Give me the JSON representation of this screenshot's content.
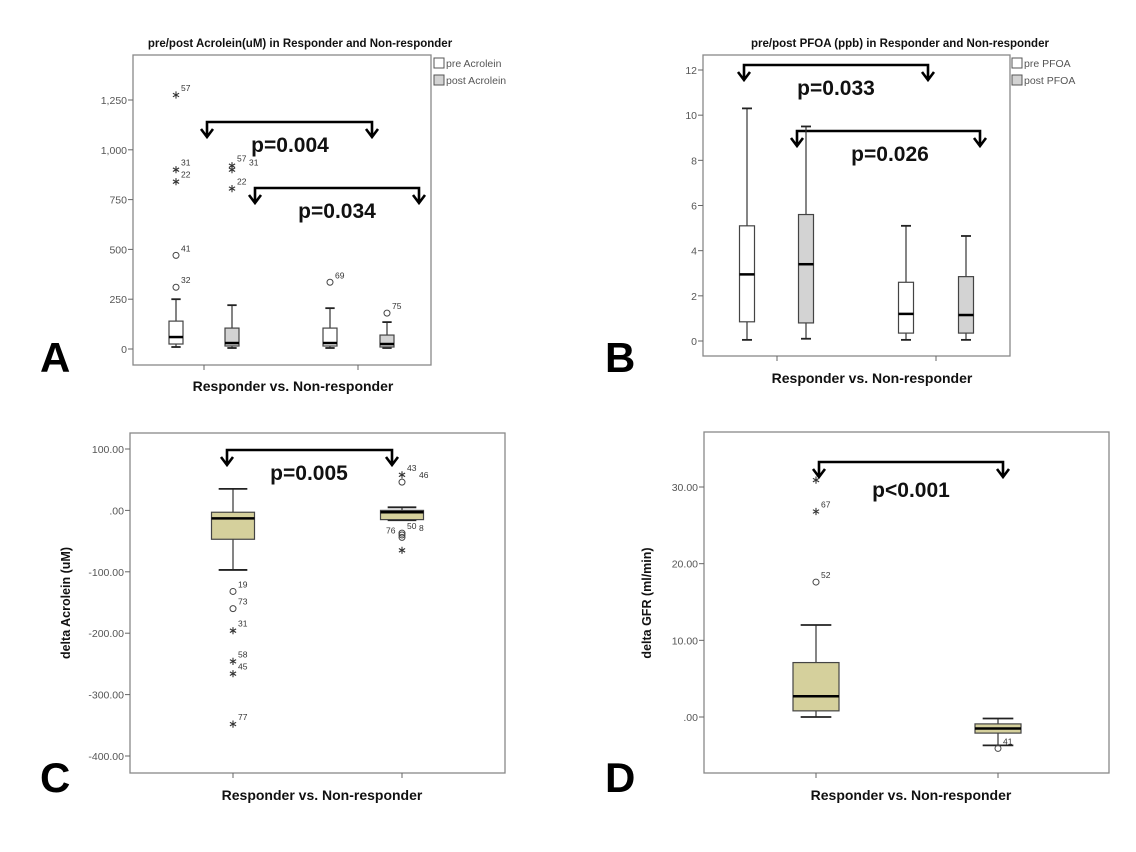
{
  "chart_data": [
    {
      "type": "box",
      "letter": "A",
      "title": "pre/post Acrolein(uM) in Responder and Non-responder",
      "xlabel": "Responder vs. Non-responder",
      "ylabel": "",
      "ylim": [
        -150,
        1400
      ],
      "yticks": [
        0,
        250,
        500,
        750,
        1000,
        1250
      ],
      "ytick_labels": [
        "0",
        "250",
        "500",
        "750",
        "1,000",
        "1,250"
      ],
      "legend": [
        {
          "label": "pre Acrolein",
          "color": "#ffffff"
        },
        {
          "label": "post Acrolein",
          "color": "#d3d3d3"
        }
      ],
      "boxes": [
        {
          "group": 0,
          "series": 0,
          "min": 10,
          "q1": 25,
          "median": 60,
          "q3": 140,
          "max": 250,
          "outliers": [
            {
              "v": 1275,
              "label": "57",
              "marker": "star"
            },
            {
              "v": 900,
              "label": "31",
              "marker": "star"
            },
            {
              "v": 840,
              "label": "22",
              "marker": "star"
            },
            {
              "v": 470,
              "label": "41",
              "marker": "circle"
            },
            {
              "v": 310,
              "label": "32",
              "marker": "circle"
            }
          ]
        },
        {
          "group": 0,
          "series": 1,
          "min": 5,
          "q1": 15,
          "median": 30,
          "q3": 105,
          "max": 220,
          "outliers": [
            {
              "v": 920,
              "label": "57",
              "marker": "star"
            },
            {
              "v": 900,
              "label": "31",
              "marker": "star"
            },
            {
              "v": 805,
              "label": "22",
              "marker": "star"
            }
          ]
        },
        {
          "group": 1,
          "series": 0,
          "min": 5,
          "q1": 15,
          "median": 30,
          "q3": 105,
          "max": 205,
          "outliers": [
            {
              "v": 335,
              "label": "69",
              "marker": "circle"
            }
          ]
        },
        {
          "group": 1,
          "series": 1,
          "min": 5,
          "q1": 10,
          "median": 25,
          "q3": 70,
          "max": 135,
          "outliers": [
            {
              "v": 180,
              "label": "75",
              "marker": "circle"
            }
          ]
        }
      ],
      "annotations": [
        {
          "text": "p=0.004",
          "from": 0,
          "to": 2
        },
        {
          "text": "p=0.034",
          "from": 1,
          "to": 3
        }
      ]
    },
    {
      "type": "box",
      "letter": "B",
      "title": "pre/post PFOA (ppb) in Responder and Non-responder",
      "xlabel": "Responder vs. Non-responder",
      "ylabel": "",
      "ylim": [
        -0.7,
        12.7
      ],
      "yticks": [
        0,
        2,
        4,
        6,
        8,
        10,
        12
      ],
      "ytick_labels": [
        "0",
        "2",
        "4",
        "6",
        "8",
        "10",
        "12"
      ],
      "legend": [
        {
          "label": "pre PFOA",
          "color": "#ffffff"
        },
        {
          "label": "post PFOA",
          "color": "#d3d3d3"
        }
      ],
      "boxes": [
        {
          "group": 0,
          "series": 0,
          "min": 0.05,
          "q1": 0.85,
          "median": 2.95,
          "q3": 5.1,
          "max": 10.3,
          "outliers": []
        },
        {
          "group": 0,
          "series": 1,
          "min": 0.1,
          "q1": 0.8,
          "median": 3.4,
          "q3": 5.6,
          "max": 9.5,
          "outliers": []
        },
        {
          "group": 1,
          "series": 0,
          "min": 0.05,
          "q1": 0.35,
          "median": 1.2,
          "q3": 2.6,
          "max": 5.1,
          "outliers": []
        },
        {
          "group": 1,
          "series": 1,
          "min": 0.05,
          "q1": 0.35,
          "median": 1.15,
          "q3": 2.85,
          "max": 4.65,
          "outliers": []
        }
      ],
      "annotations": [
        {
          "text": "p=0.033",
          "from": 0,
          "to": 2
        },
        {
          "text": "p=0.026",
          "from": 1,
          "to": 3
        }
      ]
    },
    {
      "type": "box",
      "letter": "C",
      "title": "",
      "xlabel": "Responder vs. Non-responder",
      "ylabel": "delta Acrolein (uM)",
      "ylim": [
        -428,
        126
      ],
      "yticks": [
        100,
        0,
        -100,
        -200,
        -300,
        -400
      ],
      "ytick_labels": [
        "100.00",
        ".00",
        "-100.00",
        "-200.00",
        "-300.00",
        "-400.00"
      ],
      "legend": [],
      "boxes": [
        {
          "group": 0,
          "series": 0,
          "min": -97,
          "q1": -47,
          "median": -13,
          "q3": -3,
          "max": 35,
          "outliers": [
            {
              "v": -132,
              "label": "19",
              "marker": "circle"
            },
            {
              "v": -160,
              "label": "73",
              "marker": "circle"
            },
            {
              "v": -196,
              "label": "31",
              "marker": "star"
            },
            {
              "v": -246,
              "label": "58",
              "marker": "star"
            },
            {
              "v": -266,
              "label": "45",
              "marker": "star"
            },
            {
              "v": -348,
              "label": "77",
              "marker": "star"
            }
          ]
        },
        {
          "group": 1,
          "series": 0,
          "min": -16,
          "q1": -15,
          "median": -3,
          "q3": 0,
          "max": 5,
          "outliers": [
            {
              "v": 58,
              "label": "43",
              "marker": "star"
            },
            {
              "v": 46,
              "label": "46",
              "marker": "circle"
            },
            {
              "v": -37,
              "label": "50",
              "marker": "circle"
            },
            {
              "v": -40,
              "label": "8",
              "marker": "circle"
            },
            {
              "v": -44,
              "label": "76",
              "marker": "circle"
            },
            {
              "v": -65,
              "label": "",
              "marker": "star"
            }
          ]
        }
      ],
      "annotations": [
        {
          "text": "p=0.005",
          "from": 0,
          "to": 1
        }
      ]
    },
    {
      "type": "box",
      "letter": "D",
      "title": "",
      "xlabel": "Responder vs. Non-responder",
      "ylabel": "delta GFR (ml/min)",
      "ylim": [
        -7.3,
        37.2
      ],
      "yticks": [
        30,
        20,
        10,
        0
      ],
      "ytick_labels": [
        "30.00",
        "20.00",
        "10.00",
        ".00"
      ],
      "legend": [],
      "boxes": [
        {
          "group": 0,
          "series": 0,
          "min": 0,
          "q1": 0.8,
          "median": 2.7,
          "q3": 7.1,
          "max": 12,
          "outliers": [
            {
              "v": 30.9,
              "label": "",
              "marker": "star"
            },
            {
              "v": 26.8,
              "label": "67",
              "marker": "star"
            },
            {
              "v": 17.6,
              "label": "52",
              "marker": "circle"
            }
          ]
        },
        {
          "group": 1,
          "series": 0,
          "min": -3.7,
          "q1": -2.1,
          "median": -1.5,
          "q3": -0.9,
          "max": -0.2,
          "outliers": [
            {
              "v": -4.1,
              "label": "41",
              "marker": "circle"
            }
          ]
        }
      ],
      "annotations": [
        {
          "text": "p<0.001",
          "from": 0,
          "to": 1
        }
      ]
    }
  ]
}
